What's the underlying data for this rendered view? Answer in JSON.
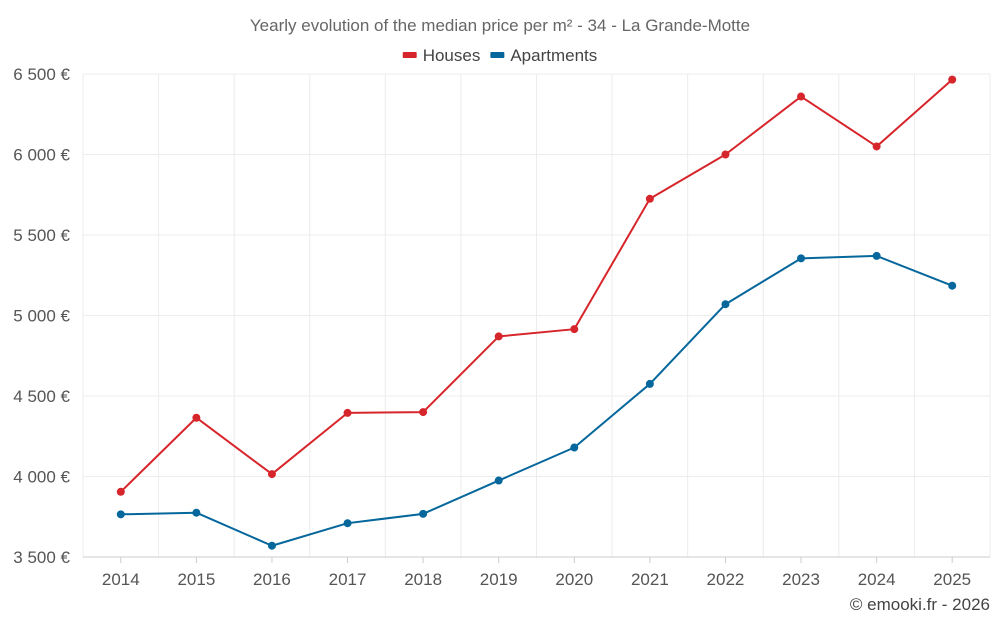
{
  "chart_data": {
    "type": "line",
    "title": "Yearly evolution of the median price per m² - 34 - La Grande-Motte",
    "categories": [
      "2014",
      "2015",
      "2016",
      "2017",
      "2018",
      "2019",
      "2020",
      "2021",
      "2022",
      "2023",
      "2024",
      "2025"
    ],
    "series": [
      {
        "name": "Houses",
        "color": "#d7262b",
        "values": [
          3905,
          4365,
          4015,
          4395,
          4400,
          4870,
          4915,
          5725,
          6000,
          6360,
          6050,
          6465
        ]
      },
      {
        "name": "Apartments",
        "color": "#05679b",
        "values": [
          3765,
          3775,
          3570,
          3710,
          3768,
          3975,
          4180,
          4575,
          5070,
          5355,
          5370,
          5185
        ]
      }
    ],
    "ylim": [
      3500,
      6500
    ],
    "yticks": [
      3500,
      4000,
      4500,
      5000,
      5500,
      6000,
      6500
    ],
    "ytick_labels": [
      "3 500 €",
      "4 000 €",
      "4 500 €",
      "5 000 €",
      "5 500 €",
      "6 000 €",
      "6 500 €"
    ],
    "xlabel": "",
    "ylabel": "",
    "grid": true,
    "legend_position": "top-center"
  },
  "credit": "© emooki.fr - 2026"
}
